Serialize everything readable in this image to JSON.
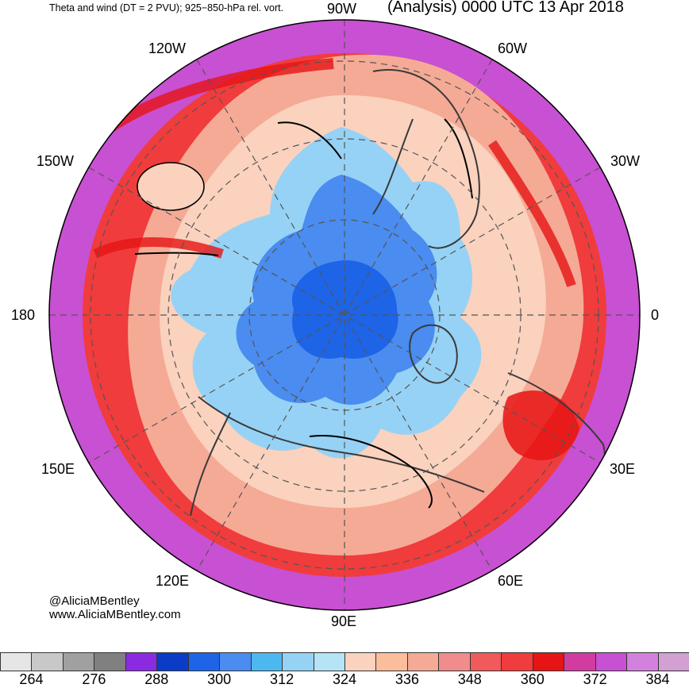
{
  "header": {
    "subtitle": "Theta and wind (DT = 2 PVU); 925−850-hPa rel. vort.",
    "title": "(Analysis) 0000 UTC 13 Apr 2018"
  },
  "credits": {
    "handle": "@AliciaMBentley",
    "website": "www.AliciaMBentley.com"
  },
  "longitude_labels": {
    "lon_90w": "90W",
    "lon_60w": "60W",
    "lon_30w": "30W",
    "lon_0": "0",
    "lon_30e": "30E",
    "lon_60e": "60E",
    "lon_90e": "90E",
    "lon_120e": "120E",
    "lon_150e": "150E",
    "lon_180": "180",
    "lon_150w": "150W",
    "lon_120w": "120W"
  },
  "colorbar": {
    "colors": [
      "#e6e6e6",
      "#c8c8c8",
      "#a0a0a0",
      "#808080",
      "#8a2be2",
      "#0a3cc8",
      "#1e64e6",
      "#4a8cf0",
      "#4db8f0",
      "#96d2f5",
      "#b4e4f5",
      "#fad2be",
      "#fabe9b",
      "#f5aa96",
      "#f08c8c",
      "#f05a5a",
      "#f03c3c",
      "#e61414",
      "#d23ca0",
      "#c850d2",
      "#d282dc",
      "#d2a0d2"
    ],
    "tick_labels": [
      "264",
      "276",
      "288",
      "300",
      "312",
      "324",
      "336",
      "348",
      "360",
      "372",
      "384"
    ]
  }
}
